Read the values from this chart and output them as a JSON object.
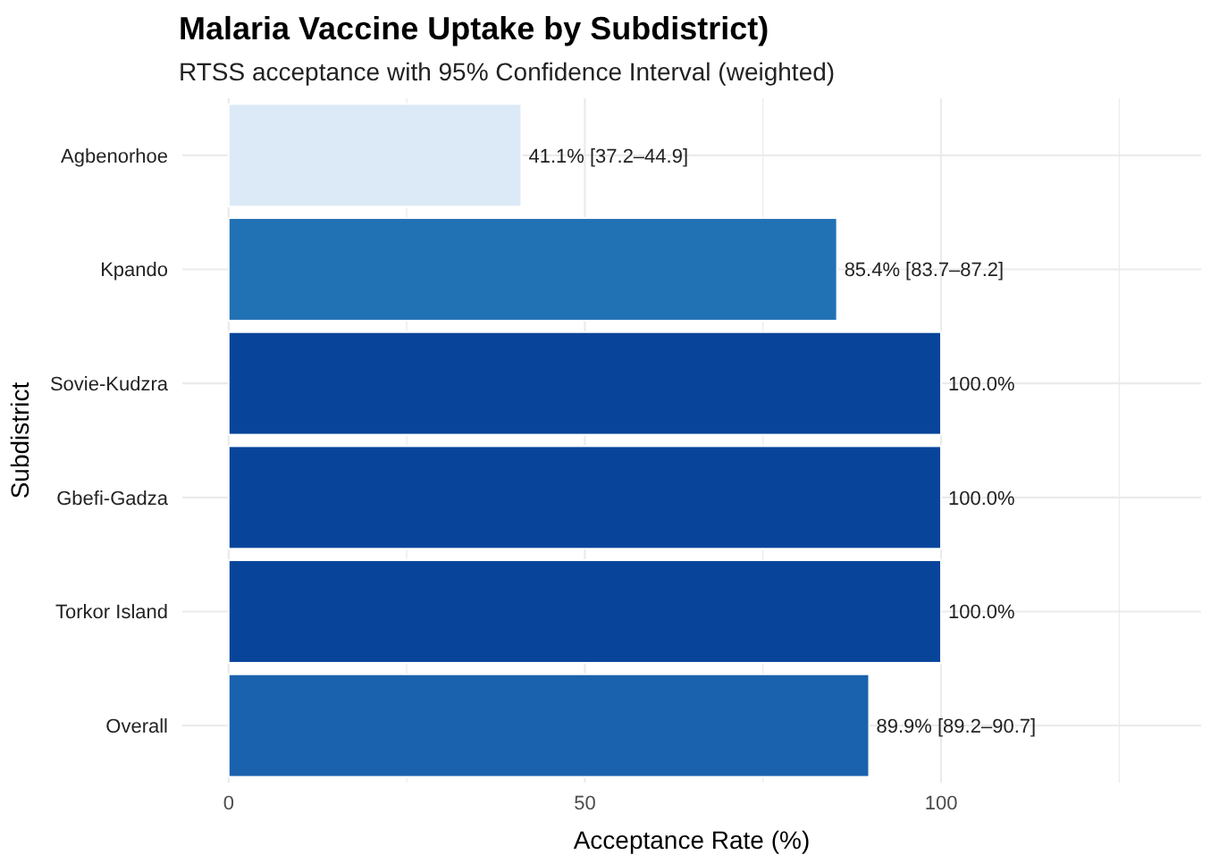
{
  "chart_data": {
    "type": "bar",
    "orientation": "horizontal",
    "title": "Malaria Vaccine Uptake by Subdistrict)",
    "subtitle": "RTSS acceptance with 95% Confidence Interval (weighted)",
    "xlabel": "Acceptance Rate (%)",
    "ylabel": "Subdistrict",
    "categories": [
      "Agbenorhoe",
      "Kpando",
      "Sovie-Kudzra",
      "Gbefi-Gadza",
      "Torkor Island",
      "Overall"
    ],
    "values": [
      41.1,
      85.4,
      100,
      100,
      100,
      89.9
    ],
    "colors": [
      "#dce9f6",
      "#2171b5",
      "#08459a",
      "#08459a",
      "#08459a",
      "#1a62ad"
    ],
    "value_labels": [
      "41.1% [37.2–44.9]",
      "85.4% [83.7–87.2]",
      "100.0%",
      "100.0%",
      "100.0%",
      "89.9% [89.2–90.7]"
    ],
    "xlim": [
      -6.5,
      136.5
    ],
    "xticks": [
      0,
      {
        "value": 25,
        "label": null
      },
      50,
      {
        "value": 75,
        "label": null
      },
      100,
      {
        "value": 125,
        "label": null
      }
    ],
    "grid": true
  }
}
